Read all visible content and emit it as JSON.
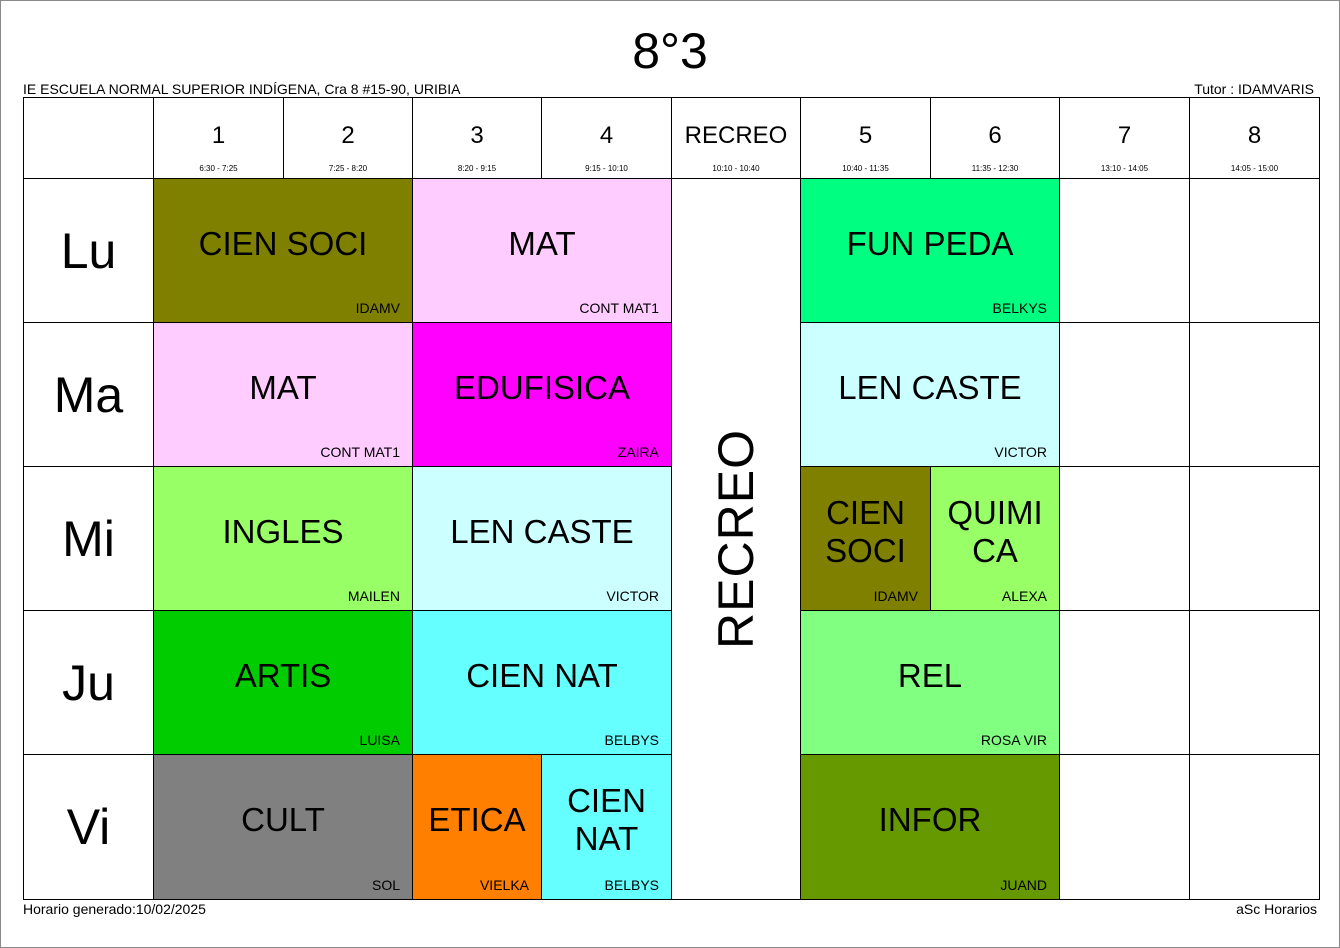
{
  "header": {
    "title": "8°3",
    "school": "IE ESCUELA NORMAL SUPERIOR INDÍGENA, Cra 8 #15-90, URIBIA",
    "tutor": "Tutor : IDAMVARIS"
  },
  "footer": {
    "generated": "Horario generado:10/02/2025",
    "brand": "aSc Horarios"
  },
  "periods": [
    {
      "label": "1",
      "time": "6:30 - 7:25"
    },
    {
      "label": "2",
      "time": "7:25 - 8:20"
    },
    {
      "label": "3",
      "time": "8:20 - 9:15"
    },
    {
      "label": "4",
      "time": "9:15 - 10:10"
    },
    {
      "label": "RECREO",
      "time": "10:10 - 10:40"
    },
    {
      "label": "5",
      "time": "10:40 - 11:35"
    },
    {
      "label": "6",
      "time": "11:35 - 12:30"
    },
    {
      "label": "7",
      "time": "13:10 - 14:05"
    },
    {
      "label": "8",
      "time": "14:05 - 15:00"
    }
  ],
  "days": [
    "Lu",
    "Ma",
    "Mi",
    "Ju",
    "Vi"
  ],
  "recess_label": "RECREO",
  "lessons": [
    {
      "day": 0,
      "start": 0,
      "span": 2,
      "subject": "CIEN SOCI",
      "teacher": "IDAMV",
      "color": "#808000"
    },
    {
      "day": 0,
      "start": 2,
      "span": 2,
      "subject": "MAT",
      "teacher": "CONT MAT1",
      "color": "#ffccff"
    },
    {
      "day": 0,
      "start": 5,
      "span": 2,
      "subject": "FUN PEDA",
      "teacher": "BELKYS",
      "color": "#00ff80"
    },
    {
      "day": 1,
      "start": 0,
      "span": 2,
      "subject": "MAT",
      "teacher": "CONT MAT1",
      "color": "#ffccff"
    },
    {
      "day": 1,
      "start": 2,
      "span": 2,
      "subject": "EDUFISICA",
      "teacher": "ZAIRA",
      "color": "#ff00ff"
    },
    {
      "day": 1,
      "start": 5,
      "span": 2,
      "subject": "LEN CASTE",
      "teacher": "VICTOR",
      "color": "#ccffff"
    },
    {
      "day": 2,
      "start": 0,
      "span": 2,
      "subject": "INGLES",
      "teacher": "MAILEN",
      "color": "#99ff66"
    },
    {
      "day": 2,
      "start": 2,
      "span": 2,
      "subject": "LEN CASTE",
      "teacher": "VICTOR",
      "color": "#ccffff"
    },
    {
      "day": 2,
      "start": 5,
      "span": 1,
      "subject": "CIEN SOCI",
      "teacher": "IDAMV",
      "color": "#808000"
    },
    {
      "day": 2,
      "start": 6,
      "span": 1,
      "subject": "QUIMICA",
      "teacher": "ALEXA",
      "color": "#99ff66",
      "display": "QUIMI CA"
    },
    {
      "day": 3,
      "start": 0,
      "span": 2,
      "subject": "ARTIS",
      "teacher": "LUISA",
      "color": "#00cc00"
    },
    {
      "day": 3,
      "start": 2,
      "span": 2,
      "subject": "CIEN NAT",
      "teacher": "BELBYS",
      "color": "#66ffff"
    },
    {
      "day": 3,
      "start": 5,
      "span": 2,
      "subject": "REL",
      "teacher": "ROSA VIR",
      "color": "#80ff80"
    },
    {
      "day": 4,
      "start": 0,
      "span": 2,
      "subject": "CULT",
      "teacher": "SOL",
      "color": "#808080"
    },
    {
      "day": 4,
      "start": 2,
      "span": 1,
      "subject": "ETICA",
      "teacher": "VIELKA",
      "color": "#ff8000"
    },
    {
      "day": 4,
      "start": 3,
      "span": 1,
      "subject": "CIEN NAT",
      "teacher": "BELBYS",
      "color": "#66ffff"
    },
    {
      "day": 4,
      "start": 5,
      "span": 2,
      "subject": "INFOR",
      "teacher": "JUAND",
      "color": "#669900"
    }
  ]
}
